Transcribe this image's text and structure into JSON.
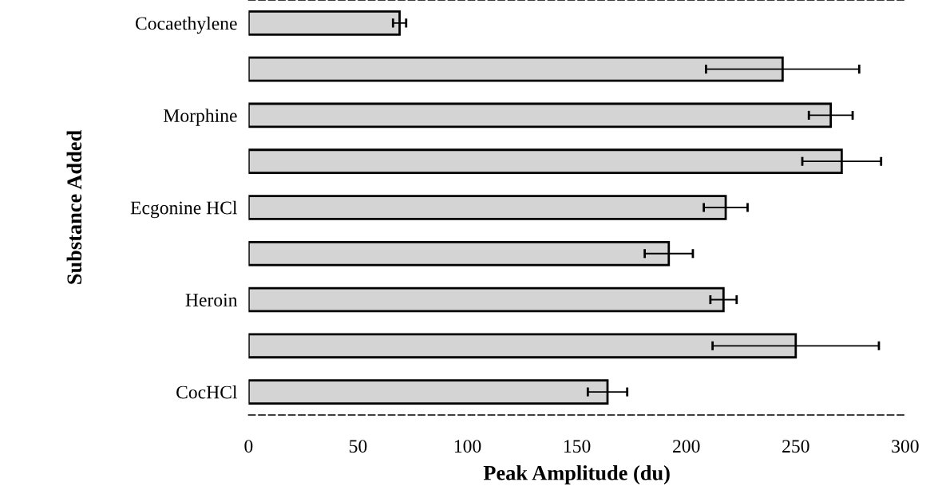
{
  "chart_data": {
    "type": "bar",
    "orientation": "horizontal",
    "xlabel": "Peak Amplitude (du)",
    "ylabel": "Substance Added",
    "categories": [
      "Cocaethylene",
      null,
      "Morphine",
      null,
      "Ecgonine HCl",
      null,
      "Heroin",
      null,
      "CocHCl"
    ],
    "values": [
      69,
      244,
      266,
      271,
      218,
      192,
      217,
      250,
      164
    ],
    "errors": [
      3,
      35,
      10,
      18,
      10,
      11,
      6,
      38,
      9
    ],
    "color": "#d4d4d4",
    "xlim": [
      0,
      300
    ],
    "xticks": [
      0,
      50,
      100,
      150,
      200,
      250,
      300
    ],
    "grid": false,
    "legend": false
  }
}
